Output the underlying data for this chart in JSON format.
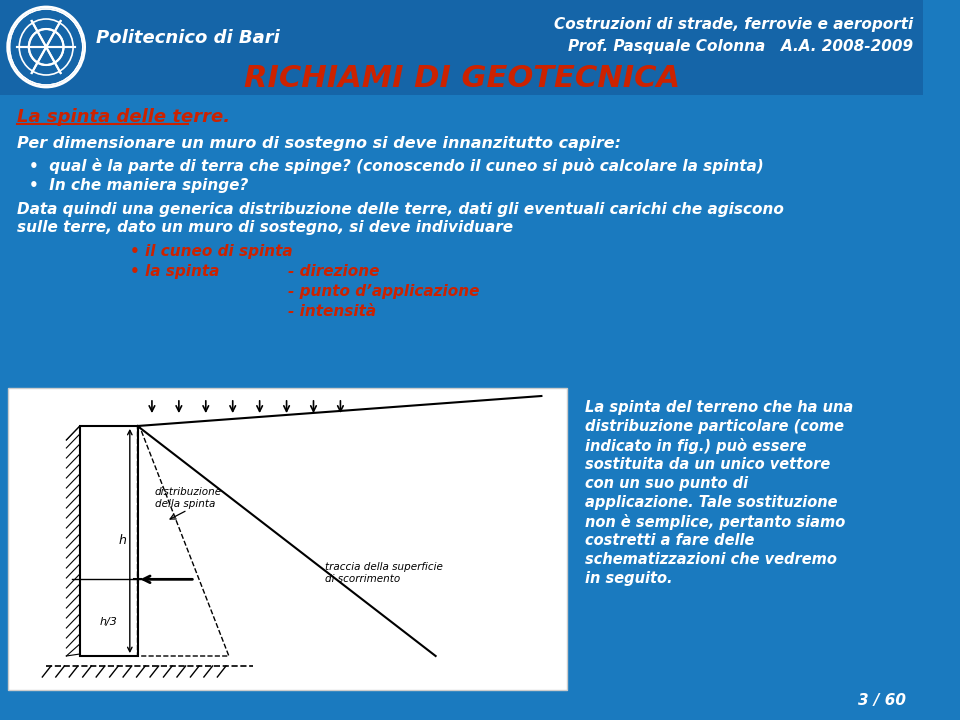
{
  "bg_color": "#1a7abf",
  "header_bg": "#1565a8",
  "white_text": "#ffffff",
  "red_text": "#cc2200",
  "title_main": "RICHIAMI DI GEOTECNICA",
  "header_left": "Politecnico di Bari",
  "header_right1": "Costruzioni di strade, ferrovie e aeroporti",
  "header_right2": "Prof. Pasquale Colonna   A.A. 2008-2009",
  "slide_title": "La spinta delle terre.",
  "body_line1": "Per dimensionare un muro di sostegno si deve innanzitutto capire:",
  "bullet1": "qual è la parte di terra che spinge? (conoscendo il cuneo si può calcolare la spinta)",
  "bullet2": "In che maniera spinge?",
  "body_line2a": "Data quindi una generica distribuzione delle terre, dati gli eventuali carichi che agiscono",
  "body_line2b": "sulle terre, dato un muro di sostegno, si deve individuare",
  "subbullet1": "il cuneo di spinta",
  "subbullet2a": "la spinta",
  "subbullet2b": "- direzione",
  "subbullet3": "- punto d’applicazione",
  "subbullet4": "- intensità",
  "right_lines": [
    "La spinta del terreno che ha una",
    "distribuzione particolare (come",
    "indicato in fig.) può essere",
    "sostituita da un unico vettore",
    "con un suo punto di",
    "applicazione. Tale sostituzione",
    "non è semplice, pertanto siamo",
    "costretti a fare delle",
    "schematizzazioni che vedremo",
    "in seguito."
  ],
  "page_num": "3 / 60"
}
